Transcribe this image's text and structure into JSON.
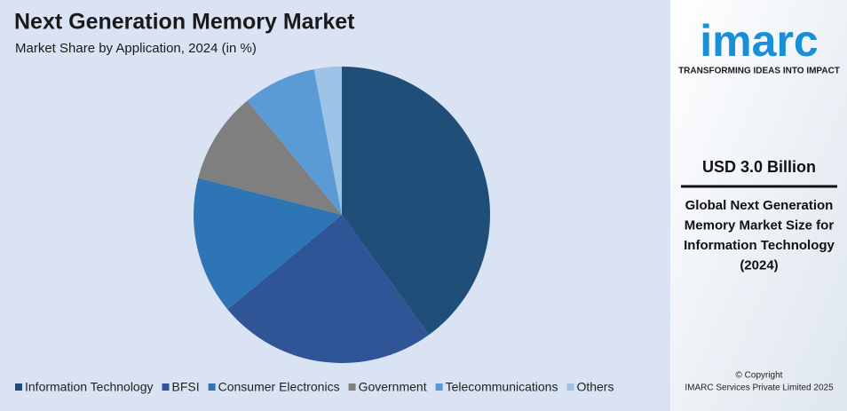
{
  "chart_data": {
    "type": "pie",
    "title": "Next Generation Memory Market",
    "subtitle": "Market Share by Application, 2024 (in %)",
    "categories": [
      "Information Technology",
      "BFSI",
      "Consumer Electronics",
      "Government",
      "Telecommunications",
      "Others"
    ],
    "values": [
      40,
      24,
      15,
      10,
      8,
      3
    ],
    "colors": [
      "#1f4e79",
      "#2f5597",
      "#2e75b6",
      "#7f7f7f",
      "#5b9bd5",
      "#9dc3e6"
    ],
    "legend": "bottom"
  },
  "sidebar": {
    "logo": "imarc",
    "tagline": "TRANSFORMING IDEAS INTO IMPACT",
    "headline": "USD 3.0 Billion",
    "description": [
      "Global Next Generation",
      "Memory Market Size for",
      "Information Technology",
      "(2024)"
    ],
    "copyright": [
      "© Copyright",
      "IMARC Services Private Limited 2025"
    ]
  }
}
